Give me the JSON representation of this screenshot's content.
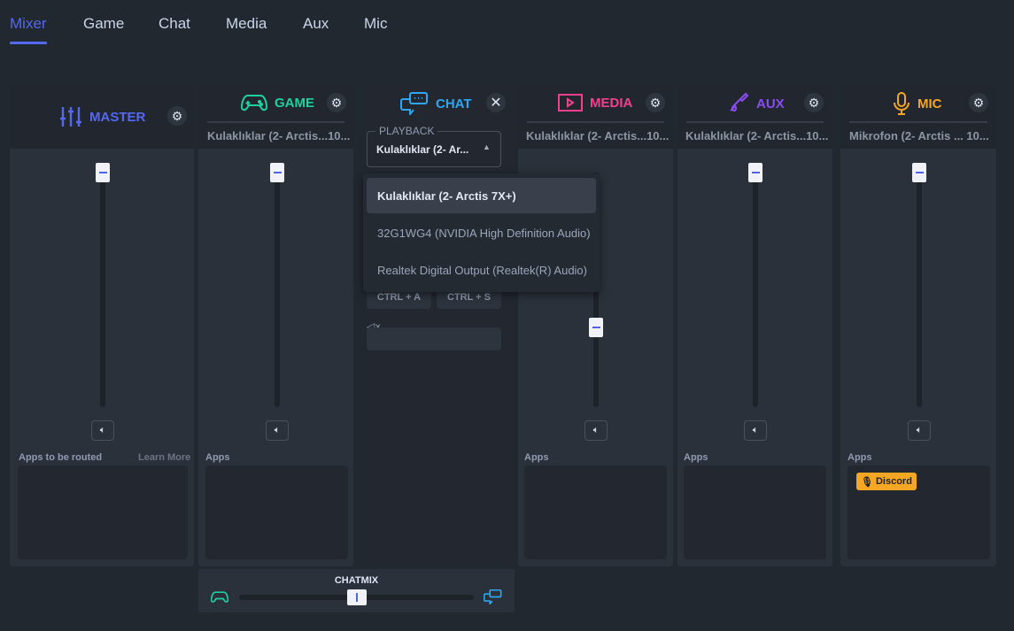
{
  "tabs": [
    {
      "label": "Mixer",
      "active": true
    },
    {
      "label": "Game"
    },
    {
      "label": "Chat"
    },
    {
      "label": "Media"
    },
    {
      "label": "Aux"
    },
    {
      "label": "Mic"
    }
  ],
  "colors": {
    "accent": "#5468f0",
    "master": "#5468f0",
    "game": "#1fd1a0",
    "chat": "#2ea6f0",
    "media": "#f2408f",
    "aux": "#8a4cf0",
    "mic": "#f5a623"
  },
  "channels": {
    "master": {
      "title": "MASTER",
      "apps_label": "Apps to be routed",
      "learn_more": "Learn More",
      "icon": "sliders-icon",
      "volume_pct": 96
    },
    "game": {
      "title": "GAME",
      "device": "Kulaklıklar (2- Arctis...10...",
      "apps_label": "Apps",
      "icon": "gamepad-icon",
      "volume_pct": 96
    },
    "chat": {
      "title": "CHAT",
      "icon": "chat-bubbles-icon",
      "playback_label": "PLAYBACK",
      "playback_value": "Kulaklıklar (2- Ar...",
      "options": [
        "Kulaklıklar (2- Arctis 7X+)",
        "32G1WG4 (NVIDIA High Definition Audio)",
        "Realtek Digital Output (Realtek(R) Audio)"
      ],
      "shortcut_a": "CTRL + A",
      "shortcut_s": "CTRL + S"
    },
    "media": {
      "title": "MEDIA",
      "device": "Kulaklıklar (2- Arctis...10...",
      "apps_label": "Apps",
      "icon": "play-screen-icon",
      "volume_pct": 35
    },
    "aux": {
      "title": "AUX",
      "device": "Kulaklıklar (2- Arctis...10...",
      "apps_label": "Apps",
      "icon": "cable-icon",
      "volume_pct": 96
    },
    "mic": {
      "title": "MIC",
      "device": "Mikrofon (2- Arctis ...  10...",
      "apps_label": "Apps",
      "icon": "microphone-icon",
      "volume_pct": 96,
      "apps": [
        "Discord"
      ]
    }
  },
  "chatmix": {
    "label": "CHATMIX",
    "value_pct": 50
  }
}
